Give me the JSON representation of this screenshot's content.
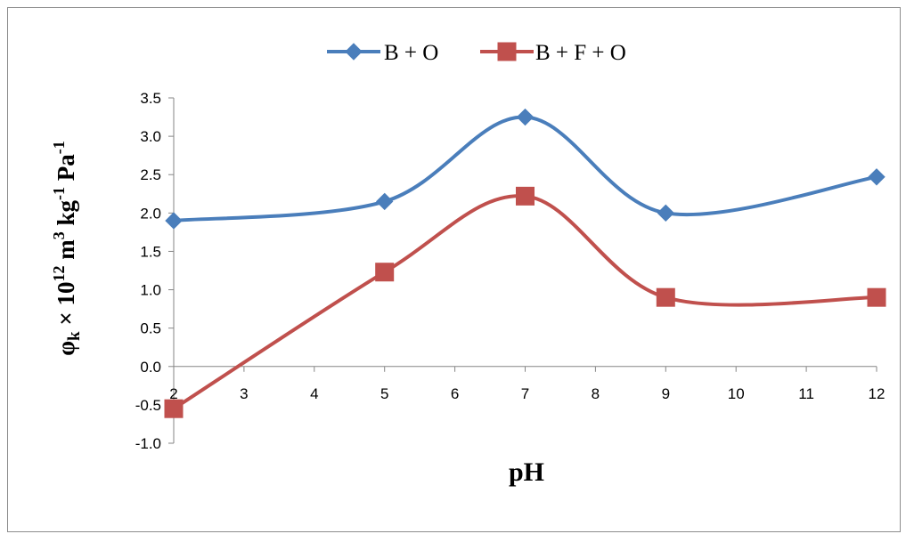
{
  "chart_data": {
    "type": "line",
    "smooth": true,
    "x": [
      2,
      5,
      7,
      9,
      12
    ],
    "series": [
      {
        "name": "B + O",
        "color": "#4a7ebb",
        "marker": "diamond",
        "values": [
          1.9,
          2.15,
          3.25,
          2.0,
          2.47
        ]
      },
      {
        "name": "B + F + O",
        "color": "#c0504d",
        "marker": "square",
        "values": [
          -0.55,
          1.23,
          2.22,
          0.9,
          0.9
        ]
      }
    ],
    "xlabel": "pH",
    "ylabel": {
      "phi": "φ",
      "sub_k": "k",
      "times_ten": " × 10",
      "exp12": "12",
      "m": " m",
      "exp3": "3",
      "kg": " kg",
      "expm1a": "-1",
      "pa": " Pa",
      "expm1b": "-1"
    },
    "xlim": [
      2,
      12
    ],
    "ylim": [
      -1.0,
      3.5
    ],
    "x_ticks": [
      "2",
      "3",
      "4",
      "5",
      "6",
      "7",
      "8",
      "9",
      "10",
      "11",
      "12"
    ],
    "y_ticks": [
      "-1.0",
      "-0.5",
      "0.0",
      "0.5",
      "1.0",
      "1.5",
      "2.0",
      "2.5",
      "3.0",
      "3.5"
    ],
    "grid": false,
    "legend_position": "top"
  }
}
